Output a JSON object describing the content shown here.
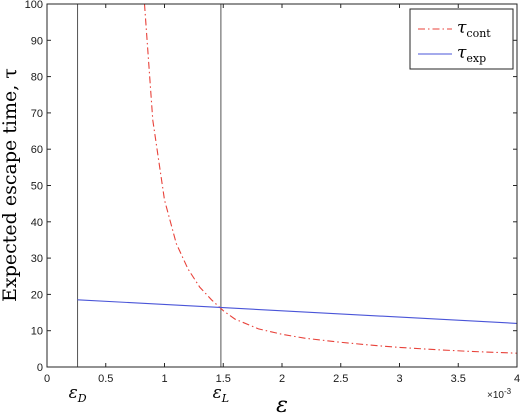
{
  "chart_data": {
    "type": "line",
    "title": "",
    "xlabel": "ε",
    "ylabel": "Expected escape time, τ",
    "xlim": [
      0,
      0.004
    ],
    "ylim": [
      0,
      100
    ],
    "x_exponent_label": "×10",
    "x_exponent_power": "-3",
    "x_ticks": [
      0,
      0.0005,
      0.001,
      0.0015,
      0.002,
      0.0025,
      0.003,
      0.0035,
      0.004
    ],
    "x_tick_labels": [
      "0",
      "0.5",
      "1",
      "1.5",
      "2",
      "2.5",
      "3",
      "3.5",
      "4"
    ],
    "y_ticks": [
      0,
      10,
      20,
      30,
      40,
      50,
      60,
      70,
      80,
      90,
      100
    ],
    "y_tick_labels": [
      "0",
      "10",
      "20",
      "30",
      "40",
      "50",
      "60",
      "70",
      "80",
      "90",
      "100"
    ],
    "grid": false,
    "legend_position": "top-right",
    "series": [
      {
        "name": "τ",
        "subscript": "cont",
        "color": "#e8423a",
        "style": "dash-dot",
        "x": [
          0.00083,
          0.0009,
          0.001,
          0.0011,
          0.0012,
          0.0013,
          0.0014,
          0.0015,
          0.0016,
          0.0018,
          0.002,
          0.0022,
          0.0025,
          0.0028,
          0.003,
          0.0033,
          0.0036,
          0.004
        ],
        "y": [
          100,
          68,
          46,
          34,
          27,
          22,
          18.5,
          15.5,
          13.2,
          10.5,
          9,
          7.9,
          6.8,
          5.9,
          5.4,
          4.8,
          4.3,
          3.8
        ]
      },
      {
        "name": "τ",
        "subscript": "exp",
        "color": "#4a55d8",
        "style": "solid",
        "x": [
          0.00026,
          0.004
        ],
        "y": [
          18.5,
          12
        ]
      }
    ],
    "vertical_lines": [
      {
        "x": 0.00026,
        "label": "ε",
        "subscript": "D",
        "color": "#555555"
      },
      {
        "x": 0.00148,
        "label": "ε",
        "subscript": "L",
        "color": "#555555"
      }
    ]
  }
}
